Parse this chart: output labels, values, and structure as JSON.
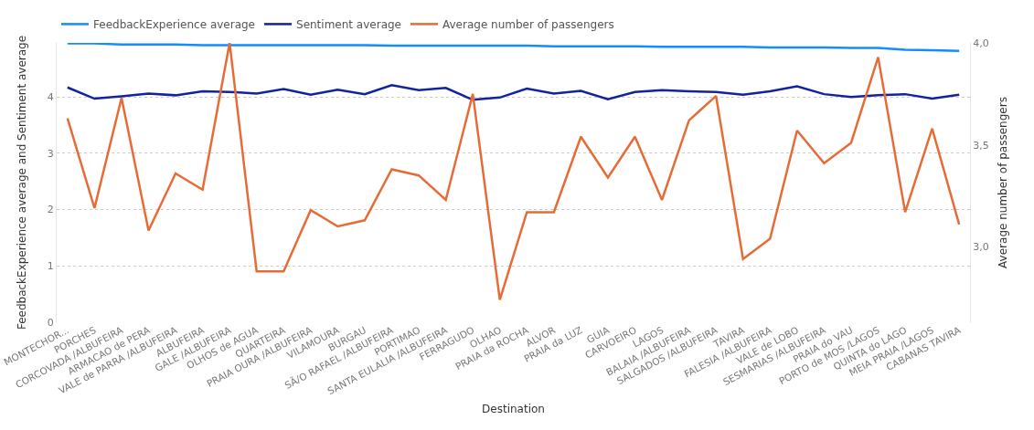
{
  "chart_data": {
    "type": "line",
    "xlabel": "Destination",
    "ylabel": "FeedbackExperience average and Sentiment average",
    "y2label": "Average number of passengers",
    "categories": [
      "MONTECHOR...",
      "PORCHES",
      "CORCOVADA /ALBUFEIRA",
      "ARMACAO de PERA",
      "VALE de PARRA /ALBUFEIRA",
      "ALBUFEIRA",
      "GALE /ALBUFEIRA",
      "OLHOS de AGUA",
      "QUARTEIRA",
      "PRAIA OURA /ALBUFEIRA",
      "VILAMOURA",
      "BURGAU",
      "SÃ/O RAFAEL /ALBUFEIRA",
      "PORTIMAO",
      "SANTA EULALIA /ALBUFEIRA",
      "FERRAGUDO",
      "OLHAO",
      "PRAIA da ROCHA",
      "ALVOR",
      "PRAIA da LUZ",
      "GUIA",
      "CARVOEIRO",
      "LAGOS",
      "BALAIA /ALBUFEIRA",
      "SALGADOS /ALBUFEIRA",
      "TAVIRA",
      "FALESIA /ALBUFEIRA",
      "VALE de LOBO",
      "SESMARIAS /ALBUFEIRA",
      "PRAIA do VAU",
      "PORTO de MOS /LAGOS",
      "QUINTA do LAGO",
      "MEIA PRAIA /LAGOS",
      "CABANAS TAVIRA"
    ],
    "series": [
      {
        "name": "FeedbackExperience average",
        "color": "#118dff",
        "values": [
          4.95,
          4.95,
          4.93,
          4.93,
          4.93,
          4.92,
          4.92,
          4.92,
          4.92,
          4.92,
          4.92,
          4.92,
          4.91,
          4.91,
          4.91,
          4.91,
          4.91,
          4.91,
          4.9,
          4.9,
          4.9,
          4.9,
          4.89,
          4.89,
          4.89,
          4.89,
          4.88,
          4.88,
          4.88,
          4.87,
          4.87,
          4.84,
          4.83,
          4.82
        ]
      },
      {
        "name": "Sentiment average",
        "color": "#12239e",
        "values": [
          4.17,
          3.97,
          4.01,
          4.06,
          4.03,
          4.1,
          4.09,
          4.06,
          4.14,
          4.04,
          4.13,
          4.05,
          4.21,
          4.12,
          4.16,
          3.95,
          3.99,
          4.15,
          4.06,
          4.11,
          3.96,
          4.09,
          4.12,
          4.1,
          4.09,
          4.04,
          4.1,
          4.19,
          4.05,
          4.0,
          4.03,
          4.05,
          3.97,
          4.04
        ]
      },
      {
        "name": "Average number of passengers",
        "color": "#e66c37",
        "axis": "y2",
        "values": [
          3.63,
          3.19,
          3.73,
          3.08,
          3.36,
          3.28,
          4.0,
          2.88,
          2.88,
          3.18,
          3.1,
          3.13,
          3.38,
          3.35,
          3.23,
          3.75,
          2.74,
          3.17,
          3.17,
          3.54,
          3.34,
          3.54,
          3.23,
          3.62,
          3.74,
          2.94,
          3.04,
          3.57,
          3.41,
          3.51,
          3.93,
          3.17,
          3.58,
          3.11
        ]
      }
    ],
    "ylim": [
      0,
      4.96
    ],
    "yticks": [
      0,
      1,
      2,
      3,
      4
    ],
    "y2lim": [
      2.63,
      4.0
    ],
    "y2ticks": [
      {
        "value": 3.0,
        "label": "3,0"
      },
      {
        "value": 3.5,
        "label": "3,5"
      },
      {
        "value": 4.0,
        "label": "4,0"
      }
    ],
    "grid": "y",
    "legend": "top left",
    "line_style": "solid"
  }
}
